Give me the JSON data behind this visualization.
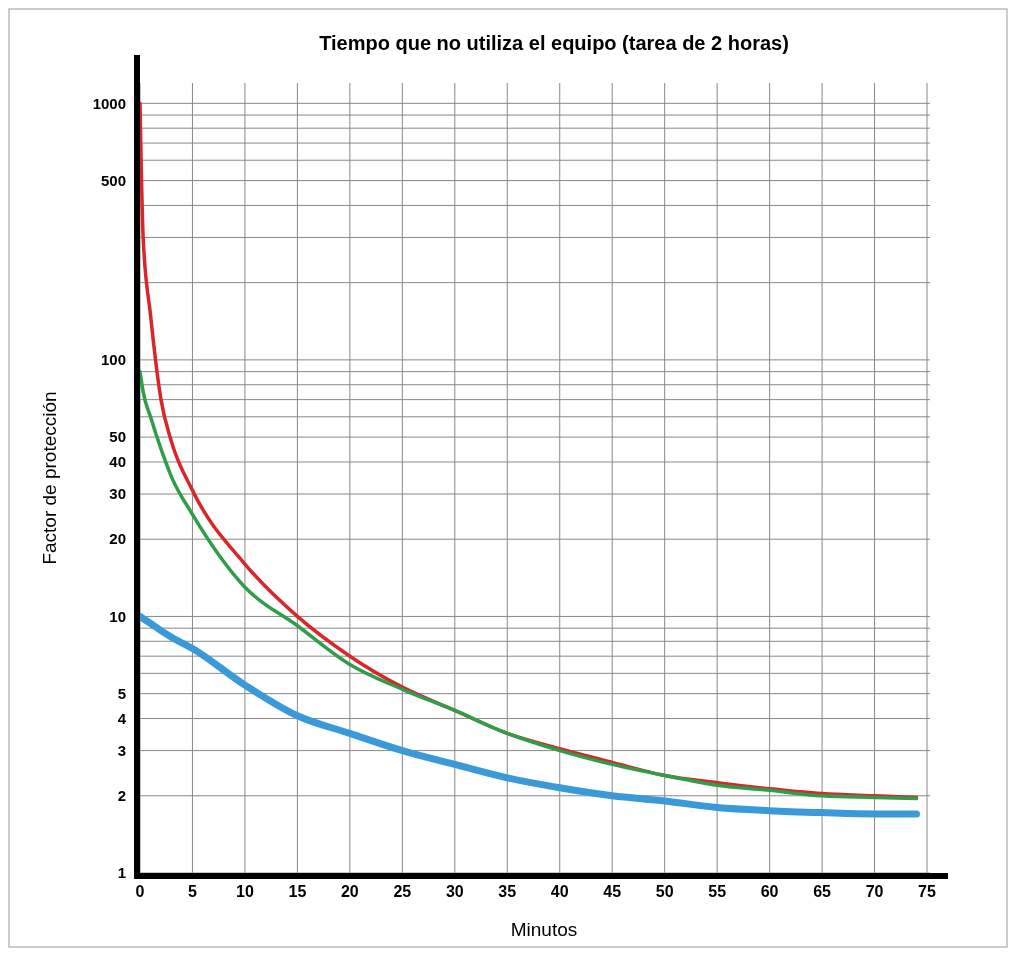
{
  "chart_data": {
    "type": "line",
    "title": "Tiempo que no utiliza el equipo (tarea de 2 horas)",
    "xlabel": "Minutos",
    "ylabel": "Factor de protección",
    "log": "y",
    "grid": true,
    "line_style": "solid",
    "marker": "none",
    "xlim": [
      0,
      77
    ],
    "xticks": [
      0,
      5,
      10,
      15,
      20,
      25,
      30,
      35,
      40,
      45,
      50,
      55,
      60,
      65,
      70,
      75
    ],
    "ylim": [
      1,
      1200
    ],
    "yticks": [
      1,
      2,
      3,
      4,
      5,
      {
        "value": 6,
        "label": null
      },
      {
        "value": 7,
        "label": null
      },
      {
        "value": 8,
        "label": null
      },
      {
        "value": 9,
        "label": null
      },
      10,
      20,
      30,
      40,
      50,
      {
        "value": 60,
        "label": null
      },
      {
        "value": 70,
        "label": null
      },
      {
        "value": 80,
        "label": null
      },
      {
        "value": 90,
        "label": null
      },
      100,
      {
        "value": 200,
        "label": null
      },
      {
        "value": 300,
        "label": null
      },
      {
        "value": 400,
        "label": null
      },
      500,
      {
        "value": 600,
        "label": null
      },
      {
        "value": 700,
        "label": null
      },
      {
        "value": 800,
        "label": null
      },
      {
        "value": 900,
        "label": null
      },
      1000
    ],
    "x": [
      0,
      0.3,
      1,
      2,
      3,
      5,
      10,
      15,
      20,
      25,
      30,
      35,
      40,
      45,
      50,
      55,
      60,
      65,
      70,
      74
    ],
    "series": [
      {
        "color": "#d9262b",
        "values": [
          1000,
          300,
          150,
          70,
          48,
          31,
          16,
          10,
          7,
          5.3,
          4.3,
          3.5,
          3.05,
          2.7,
          2.4,
          2.25,
          2.13,
          2.04,
          2,
          1.97
        ]
      },
      {
        "color": "#2e9e4a",
        "values": [
          90,
          75,
          60,
          45,
          35,
          25,
          13,
          9.2,
          6.5,
          5.2,
          4.3,
          3.5,
          3,
          2.65,
          2.4,
          2.2,
          2.1,
          2,
          1.97,
          1.95
        ]
      },
      {
        "color": "#3a9ad9",
        "values": [
          10,
          9.8,
          9.4,
          8.8,
          8.3,
          7.5,
          5.4,
          4.1,
          3.5,
          3,
          2.65,
          2.35,
          2.15,
          2,
          1.91,
          1.8,
          1.75,
          1.72,
          1.7,
          1.7
        ]
      }
    ]
  }
}
